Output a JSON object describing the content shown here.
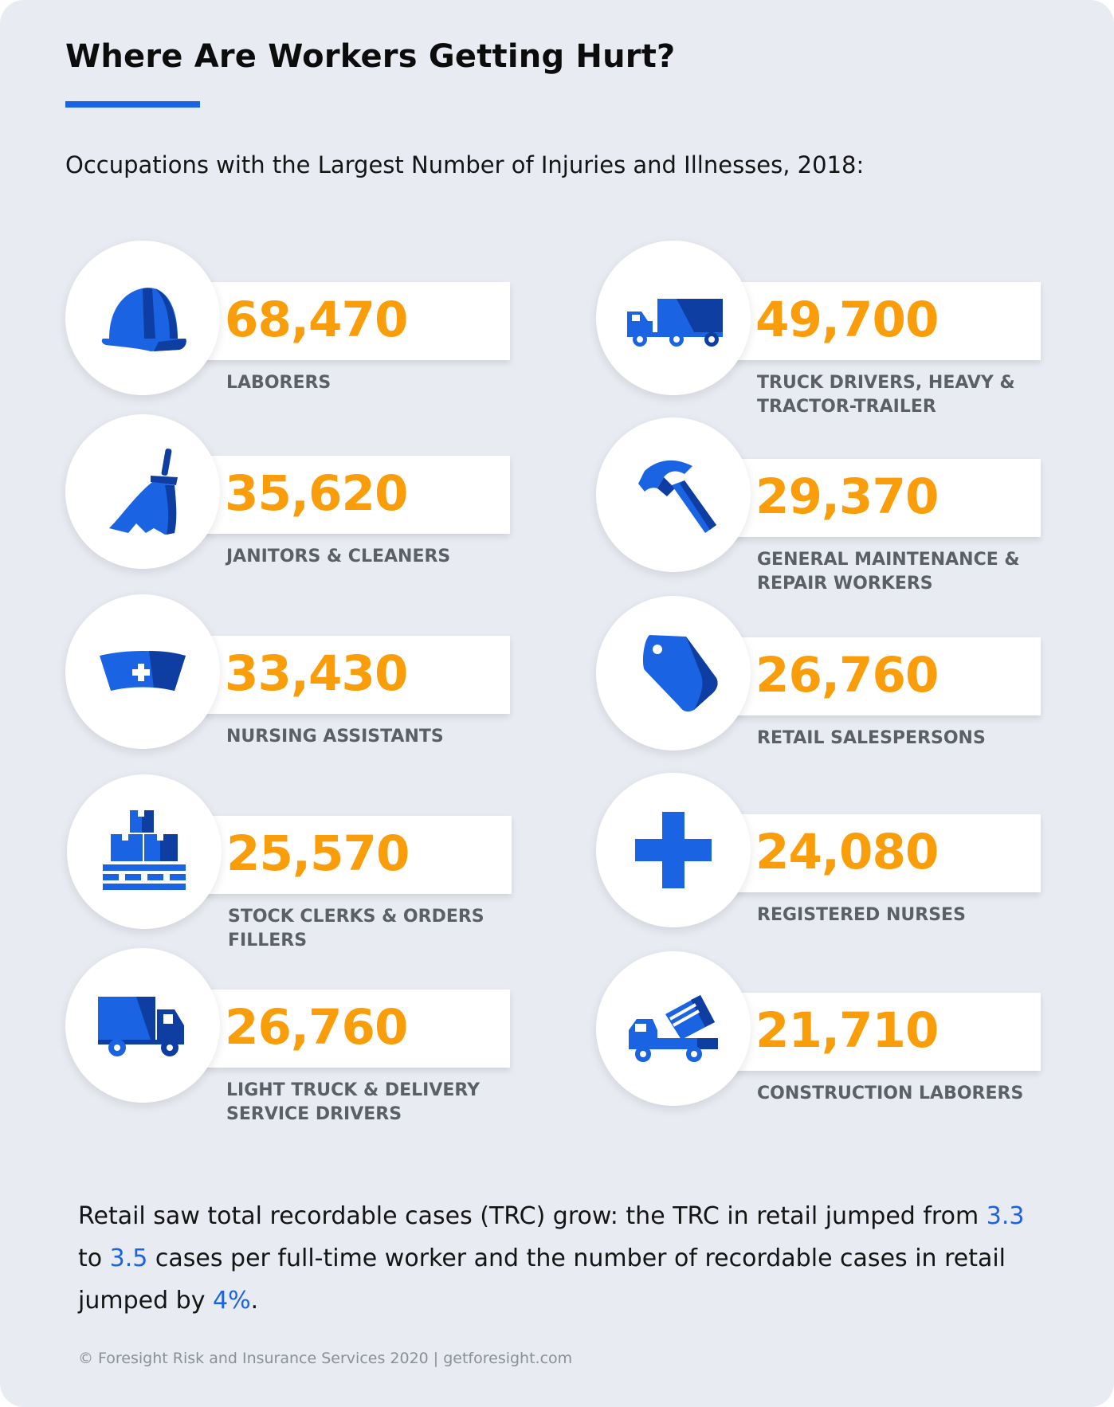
{
  "title": "Where Are Workers Getting Hurt?",
  "subtitle": "Occupations with the Largest Number of Injuries and Illnesses, 2018:",
  "colors": {
    "accent": "#1a63e3",
    "dark_blue": "#0f3ea3",
    "number": "#f99d0a",
    "label": "#5b5f66",
    "background": "#e8ebf2"
  },
  "occupations": [
    {
      "value": "68,470",
      "label": "LABORERS",
      "icon": "hard-hat-icon"
    },
    {
      "value": "49,700",
      "label": "TRUCK DRIVERS, HEAVY & TRACTOR-TRAILER",
      "icon": "semi-truck-icon"
    },
    {
      "value": "35,620",
      "label": "JANITORS & CLEANERS",
      "icon": "broom-icon"
    },
    {
      "value": "29,370",
      "label": "GENERAL MAINTENANCE & REPAIR WORKERS",
      "icon": "hammer-icon"
    },
    {
      "value": "33,430",
      "label": "NURSING ASSISTANTS",
      "icon": "nurse-cap-icon"
    },
    {
      "value": "26,760",
      "label": "RETAIL SALESPERSONS",
      "icon": "price-tag-icon"
    },
    {
      "value": "25,570",
      "label": "STOCK CLERKS & ORDERS FILLERS",
      "icon": "boxes-pallet-icon"
    },
    {
      "value": "24,080",
      "label": "REGISTERED NURSES",
      "icon": "medical-cross-icon"
    },
    {
      "value": "26,760",
      "label": "LIGHT TRUCK & DELIVERY SERVICE DRIVERS",
      "icon": "delivery-truck-icon"
    },
    {
      "value": "21,710",
      "label": "CONSTRUCTION LABORERS",
      "icon": "cement-mixer-icon"
    }
  ],
  "note": {
    "part1": "Retail saw total recordable cases (TRC) grow: the TRC in retail jumped from ",
    "value1": "3.3",
    "part2": " to ",
    "value2": "3.5",
    "part3": " cases per full-time worker and the number of recordable cases in retail jumped by ",
    "value3": "4%",
    "part4": "."
  },
  "footer": "© Foresight Risk and Insurance Services 2020 | getforesight.com"
}
